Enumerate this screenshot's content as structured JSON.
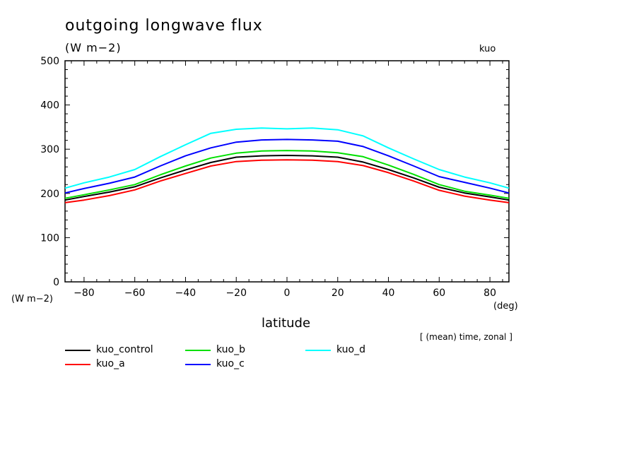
{
  "title": "outgoing longwave flux",
  "subtitle": "(W m−2)",
  "tag": "kuo",
  "y_unit_label": "(W m−2)",
  "x_unit_label": "(deg)",
  "xlabel": "latitude",
  "note": "[ (mean) time, zonal ]",
  "chart_data": {
    "type": "line",
    "title": "outgoing longwave flux",
    "xlabel": "latitude",
    "ylabel": "(W m−2)",
    "xlim": [
      -87.5,
      87.5
    ],
    "ylim": [
      0,
      500
    ],
    "xticks": [
      -80,
      -60,
      -40,
      -20,
      0,
      20,
      40,
      60,
      80
    ],
    "xtick_labels": [
      "−80",
      "−60",
      "−40",
      "−20",
      "0",
      "20",
      "40",
      "60",
      "80"
    ],
    "yticks": [
      0,
      100,
      200,
      300,
      400,
      500
    ],
    "ytick_labels": [
      "0",
      "100",
      "200",
      "300",
      "400",
      "500"
    ],
    "legend_position": "bottom",
    "x": [
      -87.5,
      -80,
      -70,
      -60,
      -50,
      -40,
      -30,
      -20,
      -10,
      0,
      10,
      20,
      30,
      40,
      50,
      60,
      70,
      80,
      87.5
    ],
    "series": [
      {
        "name": "kuo_control",
        "color": "#000000",
        "values": [
          185,
          193,
          203,
          215,
          235,
          253,
          270,
          282,
          285,
          286,
          285,
          282,
          271,
          254,
          235,
          214,
          201,
          192,
          185
        ]
      },
      {
        "name": "kuo_a",
        "color": "#ff0000",
        "values": [
          179,
          185,
          195,
          208,
          228,
          245,
          262,
          272,
          275,
          276,
          275,
          272,
          263,
          247,
          228,
          207,
          194,
          185,
          179
        ]
      },
      {
        "name": "kuo_b",
        "color": "#00e000",
        "values": [
          189,
          197,
          208,
          220,
          242,
          262,
          280,
          291,
          296,
          297,
          296,
          292,
          283,
          264,
          243,
          220,
          205,
          196,
          189
        ]
      },
      {
        "name": "kuo_c",
        "color": "#0000ff",
        "values": [
          201,
          211,
          223,
          237,
          262,
          285,
          303,
          316,
          321,
          322,
          321,
          318,
          306,
          285,
          262,
          238,
          225,
          212,
          201
        ]
      },
      {
        "name": "kuo_d",
        "color": "#00ffff",
        "values": [
          212,
          224,
          237,
          254,
          283,
          310,
          336,
          345,
          348,
          346,
          348,
          344,
          330,
          303,
          278,
          254,
          237,
          224,
          212
        ]
      }
    ]
  }
}
